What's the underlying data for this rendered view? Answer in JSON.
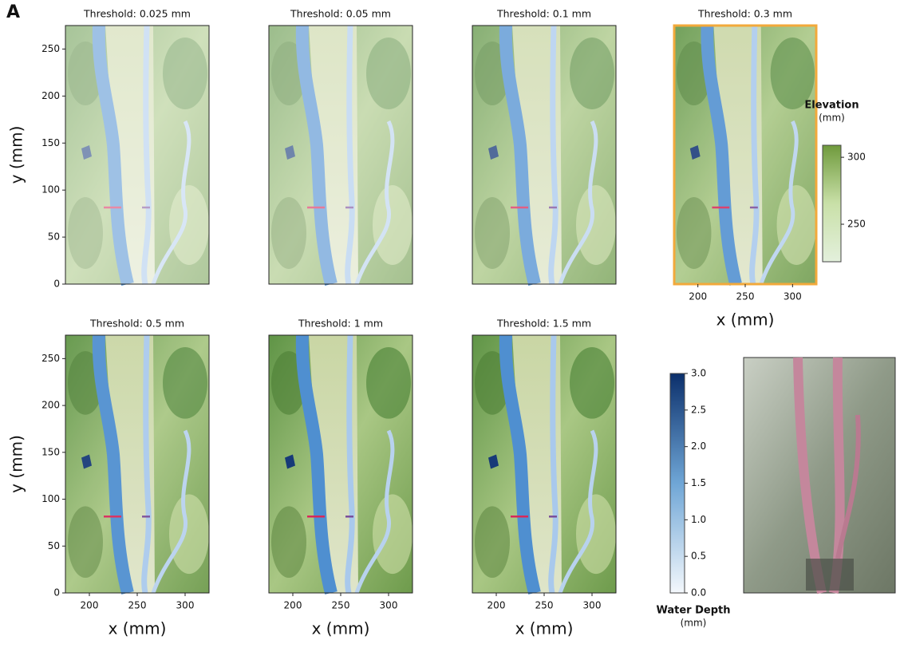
{
  "panel_label": "A",
  "chart_data": [
    {
      "type": "image",
      "title": "Threshold: 0.025 mm",
      "ylabel": "y (mm)",
      "ylim": [
        0,
        275
      ],
      "yticks": [
        0,
        50,
        100,
        150,
        200,
        250
      ]
    },
    {
      "type": "image",
      "title": "Threshold: 0.05 mm"
    },
    {
      "type": "image",
      "title": "Threshold: 0.1 mm"
    },
    {
      "type": "image",
      "title": "Threshold: 0.3 mm",
      "xlabel": "x (mm)",
      "xlim": [
        175,
        325
      ],
      "xticks": [
        200,
        250,
        300
      ],
      "highlight": "#f2a93b"
    },
    {
      "type": "image",
      "title": "Threshold: 0.5 mm",
      "xlabel": "x (mm)",
      "ylabel": "y (mm)",
      "xlim": [
        175,
        325
      ],
      "xticks": [
        200,
        250,
        300
      ],
      "ylim": [
        0,
        275
      ],
      "yticks": [
        0,
        50,
        100,
        150,
        200,
        250
      ]
    },
    {
      "type": "image",
      "title": "Threshold: 1 mm",
      "xlabel": "x (mm)",
      "xlim": [
        175,
        325
      ],
      "xticks": [
        200,
        250,
        300
      ]
    },
    {
      "type": "image",
      "title": "Threshold: 1.5 mm",
      "xlabel": "x (mm)",
      "xlim": [
        175,
        325
      ],
      "xticks": [
        200,
        250,
        300
      ]
    },
    {
      "type": "colorbar",
      "title": "Elevation",
      "subtitle": "(mm)",
      "ylim": [
        222,
        309
      ],
      "yticks": [
        250,
        300
      ],
      "colors": [
        "#e3f0dc",
        "#c9e0a8",
        "#6f9a3c"
      ]
    },
    {
      "type": "colorbar",
      "title": "Water Depth",
      "subtitle": "(mm)",
      "ylim": [
        0,
        3
      ],
      "yticks": [
        {
          "value": 0,
          "label": "0.0"
        },
        0.5,
        {
          "value": 1,
          "label": "1.0"
        },
        1.5,
        {
          "value": 2,
          "label": "2.0"
        },
        2.5,
        {
          "value": 3,
          "label": "3.0"
        }
      ],
      "colors": [
        "#f4f8fc",
        "#6fa6d6",
        "#0b2f6b"
      ]
    }
  ]
}
